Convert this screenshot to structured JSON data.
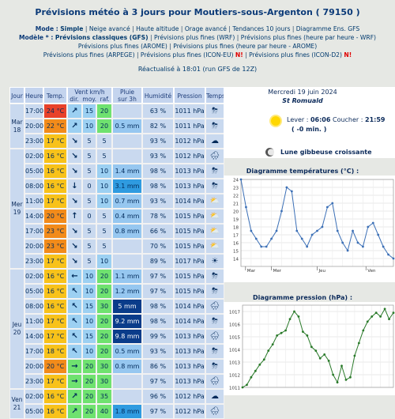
{
  "page_title": "Prévisions météo à 3 jours pour Moutiers-sous-Argenton ( 79150 )",
  "menu": {
    "mode_label": "Mode :",
    "mode_items": [
      "Simple",
      "Neige avancé",
      "Haute altitude",
      "Orage avancé",
      "Tendances 10 jours",
      "Diagramme Ens. GFS"
    ],
    "model_label": "Modèle * :",
    "model_items_line1": [
      "Prévisions classiques (GFS)",
      "Prévisions plus fines (WRF)",
      "Prévisions plus fines (heure par heure - WRF)"
    ],
    "model_items_line2": [
      "Prévisions plus fines (AROME)",
      "Prévisions plus fines (heure par heure - AROME)"
    ],
    "model_items_line3": [
      "Prévisions plus fines (ARPEGE)",
      "Prévisions plus fines (ICON-EU)",
      "Prévisions plus fines (ICON-D2)"
    ],
    "new_badge": "N!",
    "separator": "|"
  },
  "refresh_text": "Réactualisé à 18:01 (run GFS de 12Z)",
  "table": {
    "headers": {
      "day": "Jour",
      "hour": "Heure",
      "temp": "Temp.",
      "wind_group": "Vent km/h",
      "wind_dir": "dir.",
      "wind_avg": "moy.",
      "wind_gust": "raf.",
      "rain": "Pluie sur 3h",
      "humidity": "Humidité",
      "pressure": "Pression",
      "weather": "Temps"
    },
    "days": [
      {
        "label": "Mar 18",
        "rows": 3
      },
      {
        "label": "Mer 19",
        "rows": 8
      },
      {
        "label": "Jeu 20",
        "rows": 8
      }
    ],
    "rows": [
      {
        "hour": "17:00",
        "temp": "24 °C",
        "dir": "↗",
        "avg": "15",
        "gust": "20",
        "rain": "",
        "hum": "63 %",
        "pres": "1011 hPa",
        "wx": "cloud-storm-icon"
      },
      {
        "hour": "20:00",
        "temp": "22 °C",
        "dir": "↗",
        "avg": "10",
        "gust": "20",
        "rain": "0.5 mm",
        "hum": "82 %",
        "pres": "1011 hPa",
        "wx": "cloud-storm-icon"
      },
      {
        "hour": "23:00",
        "temp": "17 °C",
        "dir": "↘",
        "avg": "5",
        "gust": "5",
        "rain": "",
        "hum": "93 %",
        "pres": "1012 hPa",
        "wx": "cloud-icon"
      },
      {
        "hour": "02:00",
        "temp": "16 °C",
        "dir": "↘",
        "avg": "5",
        "gust": "5",
        "rain": "",
        "hum": "93 %",
        "pres": "1012 hPa",
        "wx": "cloud-rain-icon"
      },
      {
        "hour": "05:00",
        "temp": "16 °C",
        "dir": "↘",
        "avg": "5",
        "gust": "10",
        "rain": "1.4 mm",
        "hum": "98 %",
        "pres": "1013 hPa",
        "wx": "cloud-storm-icon"
      },
      {
        "hour": "08:00",
        "temp": "16 °C",
        "dir": "↓",
        "avg": "0",
        "gust": "10",
        "rain": "3.1 mm",
        "hum": "98 %",
        "pres": "1013 hPa",
        "wx": "cloud-storm-icon"
      },
      {
        "hour": "11:00",
        "temp": "17 °C",
        "dir": "↘",
        "avg": "5",
        "gust": "10",
        "rain": "0.7 mm",
        "hum": "93 %",
        "pres": "1014 hPa",
        "wx": "sun-storm-icon"
      },
      {
        "hour": "14:00",
        "temp": "20 °C",
        "dir": "↑",
        "avg": "0",
        "gust": "5",
        "rain": "0.4 mm",
        "hum": "78 %",
        "pres": "1015 hPa",
        "wx": "sun-storm-icon"
      },
      {
        "hour": "17:00",
        "temp": "23 °C",
        "dir": "↘",
        "avg": "5",
        "gust": "5",
        "rain": "0.8 mm",
        "hum": "66 %",
        "pres": "1015 hPa",
        "wx": "sun-storm-icon"
      },
      {
        "hour": "20:00",
        "temp": "23 °C",
        "dir": "↘",
        "avg": "5",
        "gust": "5",
        "rain": "",
        "hum": "70 %",
        "pres": "1015 hPa",
        "wx": "sun-cloud-icon"
      },
      {
        "hour": "23:00",
        "temp": "17 °C",
        "dir": "↘",
        "avg": "5",
        "gust": "10",
        "rain": "",
        "hum": "89 %",
        "pres": "1017 hPa",
        "wx": "sun-icon"
      },
      {
        "hour": "02:00",
        "temp": "16 °C",
        "dir": "←",
        "avg": "10",
        "gust": "20",
        "rain": "1.1 mm",
        "hum": "97 %",
        "pres": "1015 hPa",
        "wx": "cloud-storm-icon"
      },
      {
        "hour": "05:00",
        "temp": "16 °C",
        "dir": "↖",
        "avg": "10",
        "gust": "20",
        "rain": "1.2 mm",
        "hum": "97 %",
        "pres": "1015 hPa",
        "wx": "cloud-storm-icon"
      },
      {
        "hour": "08:00",
        "temp": "16 °C",
        "dir": "↖",
        "avg": "15",
        "gust": "30",
        "rain": "5 mm",
        "hum": "98 %",
        "pres": "1014 hPa",
        "wx": "cloud-rain-icon"
      },
      {
        "hour": "11:00",
        "temp": "17 °C",
        "dir": "↖",
        "avg": "10",
        "gust": "20",
        "rain": "9.2 mm",
        "hum": "98 %",
        "pres": "1014 hPa",
        "wx": "cloud-storm-icon"
      },
      {
        "hour": "14:00",
        "temp": "17 °C",
        "dir": "↖",
        "avg": "15",
        "gust": "20",
        "rain": "9.8 mm",
        "hum": "99 %",
        "pres": "1013 hPa",
        "wx": "cloud-heavy-rain-icon"
      },
      {
        "hour": "17:00",
        "temp": "18 °C",
        "dir": "↖",
        "avg": "10",
        "gust": "20",
        "rain": "0.5 mm",
        "hum": "93 %",
        "pres": "1013 hPa",
        "wx": "cloud-storm-icon"
      },
      {
        "hour": "20:00",
        "temp": "20 °C",
        "dir": "→",
        "avg": "20",
        "gust": "30",
        "rain": "0.8 mm",
        "hum": "86 %",
        "pres": "1013 hPa",
        "wx": "cloud-storm-icon"
      },
      {
        "hour": "23:00",
        "temp": "17 °C",
        "dir": "→",
        "avg": "20",
        "gust": "30",
        "rain": "",
        "hum": "97 %",
        "pres": "1013 hPa",
        "wx": "cloud-rain-icon"
      },
      {
        "hour": "02:00",
        "temp": "16 °C",
        "dir": "↗",
        "avg": "20",
        "gust": "35",
        "rain": "",
        "hum": "96 %",
        "pres": "1012 hPa",
        "wx": "cloud-icon"
      },
      {
        "hour": "05:00",
        "temp": "16 °C",
        "dir": "↗",
        "avg": "20",
        "gust": "40",
        "rain": "1.8 mm",
        "hum": "97 %",
        "pres": "1012 hPa",
        "wx": "cloud-rain-icon"
      }
    ],
    "last_day_label": "Ven 21"
  },
  "date_box": {
    "date": "Mercredi 19 juin 2024",
    "saint": "St Romuald",
    "sunrise_label": "Lever :",
    "sunrise": "06:06",
    "sunset_label": "Coucher :",
    "sunset": "21:59",
    "day_change": "( -0 min. )",
    "moon_phase": "Lune gibbeuse croissante"
  },
  "colors": {
    "temp_hot": "#e8412a",
    "temp_warm": "#f28b1a",
    "temp_mild": "#f8c21a",
    "wind_light": "#c9d9ef",
    "wind_med": "#9cd0f2",
    "wind_strong": "#6fe26f",
    "rain_light": "#96c7f0",
    "rain_mid": "#2f9be0",
    "rain_heavy": "#0a3c8a",
    "chart_line": "#3b6fb6",
    "pressure_line": "#2a7a2a"
  },
  "chart_data": [
    {
      "type": "line",
      "title": "Diagramme températures (°C) :",
      "xlabel": "",
      "ylabel": "",
      "ylim": [
        13,
        24
      ],
      "yticks": [
        14,
        15,
        16,
        17,
        18,
        19,
        20,
        21,
        22,
        23,
        24
      ],
      "x_day_labels": [
        "Mar",
        "Mer",
        "Jeu",
        "Ven"
      ],
      "series": [
        {
          "values": [
            24,
            20.5,
            17.5,
            16.5,
            15.5,
            15.5,
            16.5,
            17.5,
            20,
            23,
            22.5,
            17.5,
            16.5,
            15.5,
            17,
            17.5,
            18,
            20.5,
            21,
            17.5,
            16,
            15,
            17.5,
            16,
            15.5,
            18,
            18.5,
            17,
            15.5,
            14.5,
            14
          ]
        }
      ],
      "grid": true
    },
    {
      "type": "line",
      "title": "Diagramme pression (hPa) :",
      "xlabel": "",
      "ylabel": "",
      "ylim": [
        1011,
        1017.5
      ],
      "yticks": [
        1011,
        1012,
        1013,
        1014,
        1015,
        1016,
        1017
      ],
      "series": [
        {
          "values": [
            1011,
            1011.2,
            1011.8,
            1012.3,
            1012.8,
            1013.2,
            1013.9,
            1014.4,
            1015.1,
            1015.3,
            1015.5,
            1016.4,
            1017,
            1016.6,
            1015.4,
            1015.1,
            1014.2,
            1013.9,
            1013.3,
            1013.6,
            1013.1,
            1012,
            1011.4,
            1012.7,
            1011.6,
            1011.8,
            1013.5,
            1014.5,
            1015.5,
            1016.2,
            1016.6,
            1016.9,
            1016.6,
            1017.2,
            1016.4,
            1016.9
          ]
        }
      ],
      "grid": true
    }
  ]
}
